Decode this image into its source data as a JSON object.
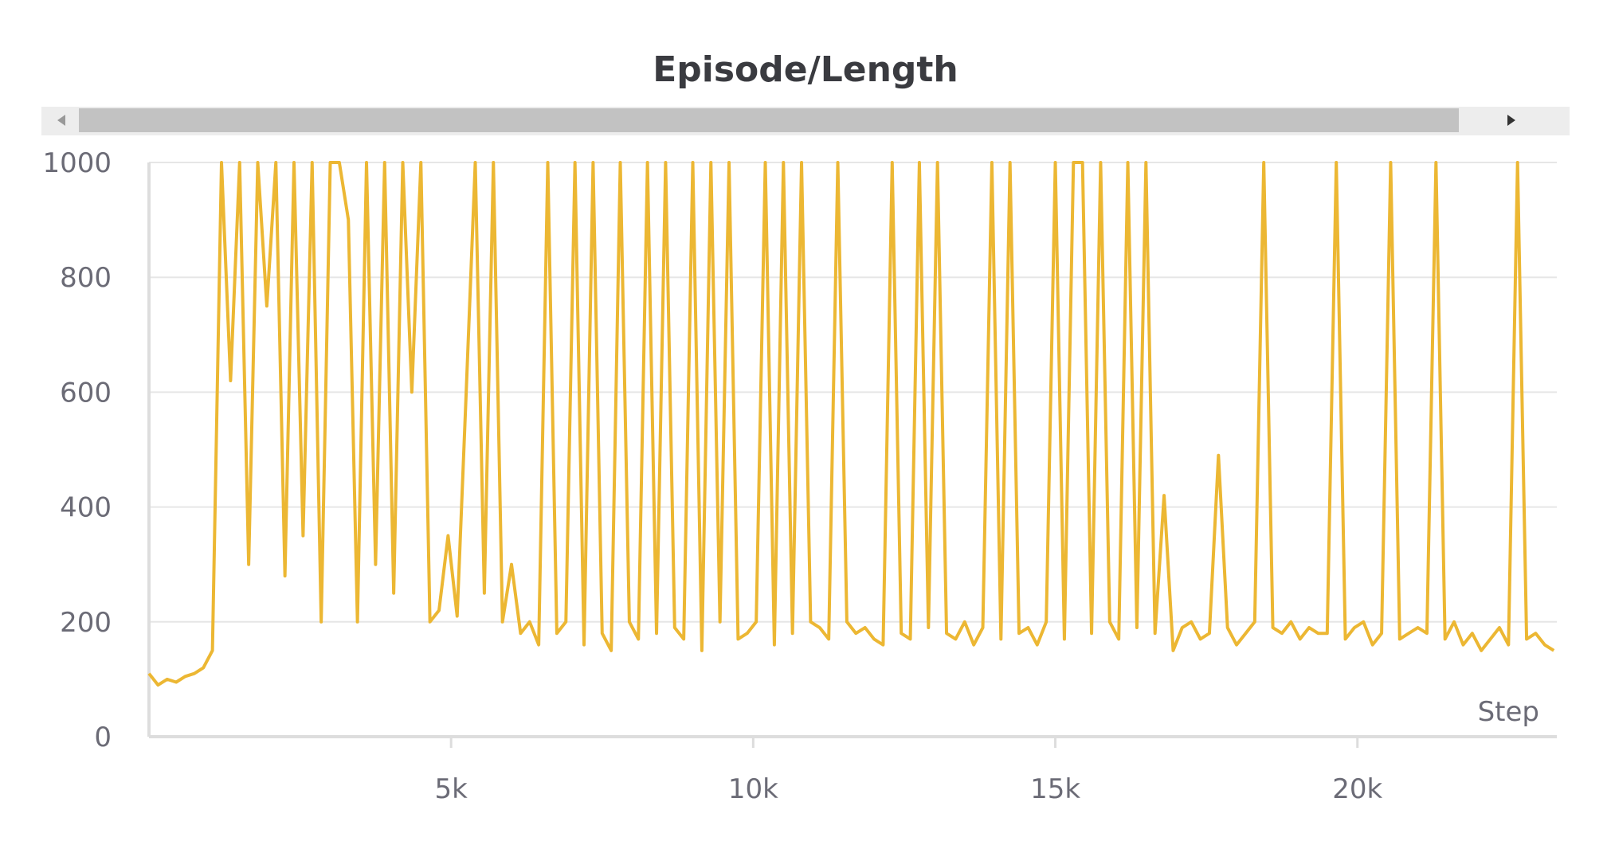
{
  "chart_data": {
    "type": "line",
    "title": "Episode/Length",
    "x_label": "Step",
    "xlim": [
      0,
      23300
    ],
    "ylim": [
      0,
      1000
    ],
    "xticks": [
      {
        "value": 5000,
        "label": "5k"
      },
      {
        "value": 10000,
        "label": "10k"
      },
      {
        "value": 15000,
        "label": "15k"
      },
      {
        "value": 20000,
        "label": "20k"
      }
    ],
    "yticks": [
      0,
      200,
      400,
      600,
      800,
      1000
    ],
    "grid": true,
    "x": [
      0,
      150,
      300,
      450,
      600,
      750,
      900,
      1050,
      1200,
      1350,
      1500,
      1650,
      1800,
      1950,
      2100,
      2250,
      2400,
      2550,
      2700,
      2850,
      3000,
      3150,
      3300,
      3450,
      3600,
      3750,
      3900,
      4050,
      4200,
      4350,
      4500,
      4650,
      4800,
      4950,
      5100,
      5250,
      5400,
      5550,
      5700,
      5850,
      6000,
      6150,
      6300,
      6450,
      6600,
      6750,
      6900,
      7050,
      7200,
      7350,
      7500,
      7650,
      7800,
      7950,
      8100,
      8250,
      8400,
      8550,
      8700,
      8850,
      9000,
      9150,
      9300,
      9450,
      9600,
      9750,
      9900,
      10050,
      10200,
      10350,
      10500,
      10650,
      10800,
      10950,
      11100,
      11250,
      11400,
      11550,
      11700,
      11850,
      12000,
      12150,
      12300,
      12450,
      12600,
      12750,
      12900,
      13050,
      13200,
      13350,
      13500,
      13650,
      13800,
      13950,
      14100,
      14250,
      14400,
      14550,
      14700,
      14850,
      15000,
      15150,
      15300,
      15450,
      15600,
      15750,
      15900,
      16050,
      16200,
      16350,
      16500,
      16650,
      16800,
      16950,
      17100,
      17250,
      17400,
      17550,
      17700,
      17850,
      18000,
      18150,
      18300,
      18450,
      18600,
      18750,
      18900,
      19050,
      19200,
      19350,
      19500,
      19650,
      19800,
      19950,
      20100,
      20250,
      20400,
      20550,
      20700,
      20850,
      21000,
      21150,
      21300,
      21450,
      21600,
      21750,
      21900,
      22050,
      22200,
      22350,
      22500,
      22650,
      22800,
      22950,
      23100,
      23250
    ],
    "series": [
      {
        "name": "Episode/Length",
        "color": "#ecb733",
        "values": [
          110,
          90,
          100,
          95,
          105,
          110,
          120,
          150,
          1000,
          620,
          1000,
          300,
          1000,
          750,
          1000,
          280,
          1000,
          350,
          1000,
          200,
          1000,
          1000,
          900,
          200,
          1000,
          300,
          1000,
          250,
          1000,
          600,
          1000,
          200,
          220,
          350,
          210,
          600,
          1000,
          250,
          1000,
          200,
          300,
          180,
          200,
          160,
          1000,
          180,
          200,
          1000,
          160,
          1000,
          180,
          150,
          1000,
          200,
          170,
          1000,
          180,
          1000,
          190,
          170,
          1000,
          150,
          1000,
          200,
          1000,
          170,
          180,
          200,
          1000,
          160,
          1000,
          180,
          1000,
          200,
          190,
          170,
          1000,
          200,
          180,
          190,
          170,
          160,
          1000,
          180,
          170,
          1000,
          190,
          1000,
          180,
          170,
          200,
          160,
          190,
          1000,
          170,
          1000,
          180,
          190,
          160,
          200,
          1000,
          170,
          1000,
          1000,
          180,
          1000,
          200,
          170,
          1000,
          190,
          1000,
          180,
          420,
          150,
          190,
          200,
          170,
          180,
          490,
          190,
          160,
          180,
          200,
          1000,
          190,
          180,
          200,
          170,
          190,
          180,
          180,
          1000,
          170,
          190,
          200,
          160,
          180,
          1000,
          170,
          180,
          190,
          180,
          1000,
          170,
          200,
          160,
          180,
          150,
          170,
          190,
          160,
          1000,
          170,
          180,
          160,
          150
        ]
      }
    ]
  }
}
